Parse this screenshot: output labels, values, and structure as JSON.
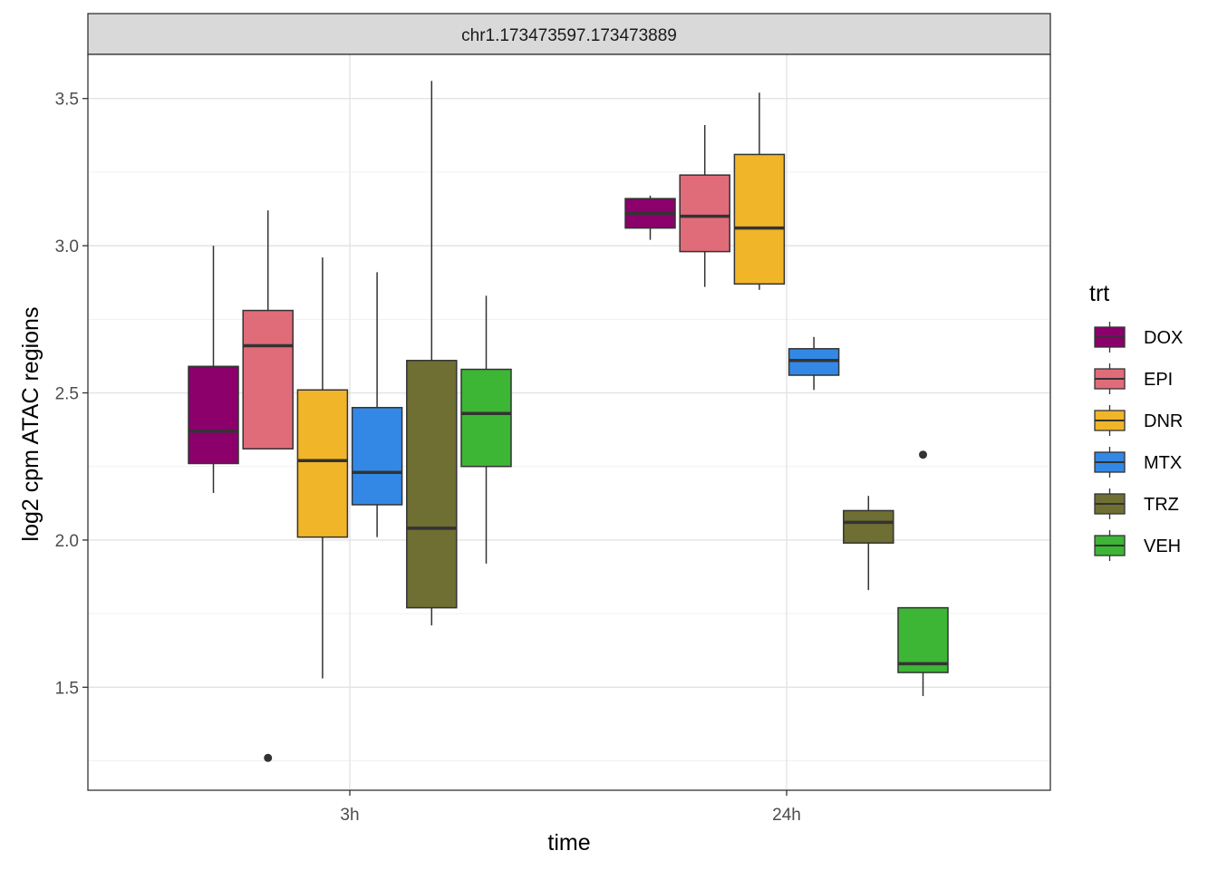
{
  "chart_data": {
    "type": "boxplot",
    "facet_label": "chr1.173473597.173473889",
    "xlabel": "time",
    "ylabel": "log2 cpm ATAC regions",
    "categories": [
      "3h",
      "24h"
    ],
    "ylim": [
      1.15,
      3.65
    ],
    "yticks": [
      1.5,
      2.0,
      2.5,
      3.0,
      3.5
    ],
    "ytick_labels": [
      "1.5",
      "2.0",
      "2.5",
      "3.0",
      "3.5"
    ],
    "minor_grid": [
      1.25,
      1.75,
      2.25,
      2.75,
      3.25
    ],
    "legend": {
      "title": "trt",
      "position": "right"
    },
    "series": [
      {
        "name": "DOX",
        "color": "#8B006B",
        "boxes": [
          {
            "category": "3h",
            "min": 2.16,
            "q1": 2.26,
            "median": 2.37,
            "q3": 2.59,
            "max": 3.0,
            "outliers": []
          },
          {
            "category": "24h",
            "min": 3.02,
            "q1": 3.06,
            "median": 3.11,
            "q3": 3.16,
            "max": 3.17,
            "outliers": []
          }
        ]
      },
      {
        "name": "EPI",
        "color": "#E06C79",
        "boxes": [
          {
            "category": "3h",
            "min": 2.31,
            "q1": 2.31,
            "median": 2.66,
            "q3": 2.78,
            "max": 3.12,
            "outliers": [
              1.26
            ]
          },
          {
            "category": "24h",
            "min": 2.86,
            "q1": 2.98,
            "median": 3.1,
            "q3": 3.24,
            "max": 3.41,
            "outliers": []
          }
        ]
      },
      {
        "name": "DNR",
        "color": "#F0B528",
        "boxes": [
          {
            "category": "3h",
            "min": 1.53,
            "q1": 2.01,
            "median": 2.27,
            "q3": 2.51,
            "max": 2.96,
            "outliers": []
          },
          {
            "category": "24h",
            "min": 2.85,
            "q1": 2.87,
            "median": 3.06,
            "q3": 3.31,
            "max": 3.52,
            "outliers": []
          }
        ]
      },
      {
        "name": "MTX",
        "color": "#3388E5",
        "boxes": [
          {
            "category": "3h",
            "min": 2.01,
            "q1": 2.12,
            "median": 2.23,
            "q3": 2.45,
            "max": 2.91,
            "outliers": []
          },
          {
            "category": "24h",
            "min": 2.51,
            "q1": 2.56,
            "median": 2.61,
            "q3": 2.65,
            "max": 2.69,
            "outliers": []
          }
        ]
      },
      {
        "name": "TRZ",
        "color": "#6F6E33",
        "boxes": [
          {
            "category": "3h",
            "min": 1.71,
            "q1": 1.77,
            "median": 2.04,
            "q3": 2.61,
            "max": 3.56,
            "outliers": []
          },
          {
            "category": "24h",
            "min": 1.83,
            "q1": 1.99,
            "median": 2.06,
            "q3": 2.1,
            "max": 2.15,
            "outliers": []
          }
        ]
      },
      {
        "name": "VEH",
        "color": "#3DB535",
        "boxes": [
          {
            "category": "3h",
            "min": 1.92,
            "q1": 2.25,
            "median": 2.43,
            "q3": 2.58,
            "max": 2.83,
            "outliers": []
          },
          {
            "category": "24h",
            "min": 1.47,
            "q1": 1.55,
            "median": 1.58,
            "q3": 1.77,
            "max": 1.77,
            "outliers": [
              2.29
            ]
          }
        ]
      }
    ]
  }
}
